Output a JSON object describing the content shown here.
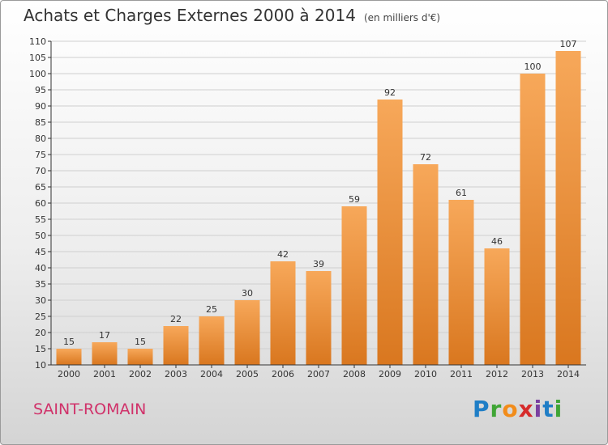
{
  "header": {
    "title": "Achats et Charges Externes 2000 à 2014",
    "unit": "(en milliers d'€)"
  },
  "footer": {
    "commune": "SAINT-ROMAIN",
    "logo": [
      "P",
      "r",
      "o",
      "x",
      "i",
      "t",
      "i"
    ],
    "logo_colors": [
      "#1f7ec6",
      "#3fa535",
      "#f28c1a",
      "#d62b2b",
      "#7a3fa0",
      "#1f7ec6",
      "#3fa535"
    ]
  },
  "colors": {
    "bar_light": "#f7a85a",
    "bar_dark": "#d9771f",
    "grid": "#cfcfcf",
    "axis": "#333333"
  },
  "chart_data": {
    "type": "bar",
    "title": "Achats et Charges Externes 2000 à 2014",
    "categories": [
      "2000",
      "2001",
      "2002",
      "2003",
      "2004",
      "2005",
      "2006",
      "2007",
      "2008",
      "2009",
      "2010",
      "2011",
      "2012",
      "2013",
      "2014"
    ],
    "values": [
      15,
      17,
      15,
      22,
      25,
      30,
      42,
      39,
      59,
      92,
      72,
      61,
      46,
      100,
      107
    ],
    "ylim": [
      10,
      110
    ],
    "yticks": [
      10,
      15,
      20,
      25,
      30,
      35,
      40,
      45,
      50,
      55,
      60,
      65,
      70,
      75,
      80,
      85,
      90,
      95,
      100,
      105,
      110
    ],
    "grid": true,
    "xlabel": "",
    "ylabel": ""
  }
}
